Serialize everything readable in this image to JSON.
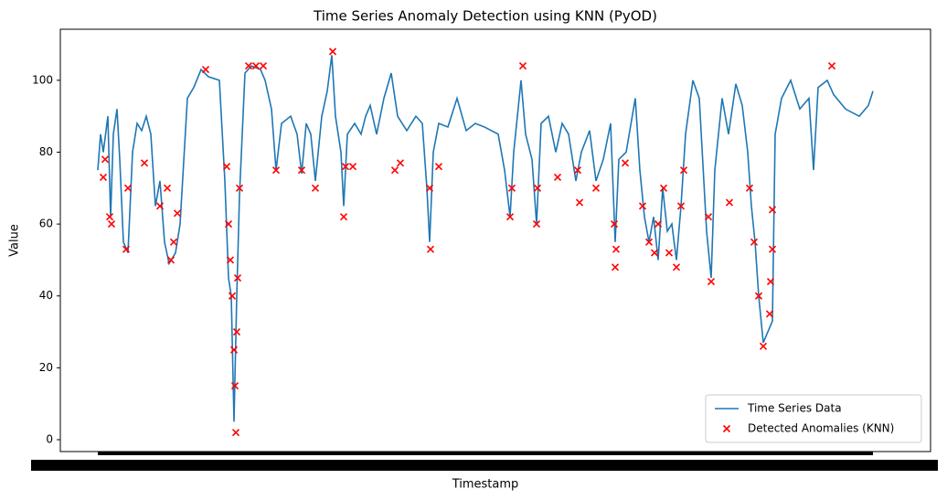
{
  "chart_data": {
    "type": "line",
    "title": "Time Series Anomaly Detection using KNN (PyOD)",
    "x_label": "Timestamp",
    "y_label": "Value",
    "xlim": [
      -41,
      911
    ],
    "ylim": [
      -3.3,
      114.2
    ],
    "yticks": [
      0,
      20,
      40,
      60,
      80,
      100
    ],
    "legend": "lower right",
    "series": [
      {
        "name": "Time Series Data",
        "color": "#1f77b4",
        "type": "line",
        "x": [
          0,
          3,
          6,
          11,
          14,
          17,
          21,
          24,
          28,
          33,
          38,
          43,
          48,
          53,
          58,
          63,
          68,
          73,
          78,
          85,
          90,
          98,
          105,
          113,
          121,
          133,
          139,
          143,
          146,
          149,
          152,
          155,
          161,
          168,
          178,
          183,
          190,
          195,
          201,
          211,
          218,
          223,
          228,
          233,
          238,
          245,
          251,
          256,
          260,
          266,
          269,
          273,
          281,
          288,
          293,
          298,
          305,
          313,
          321,
          328,
          338,
          348,
          355,
          360,
          363,
          367,
          373,
          383,
          393,
          403,
          413,
          423,
          438,
          445,
          451,
          455,
          463,
          468,
          475,
          480,
          485,
          493,
          501,
          508,
          515,
          523,
          529,
          538,
          545,
          553,
          561,
          566,
          570,
          578,
          588,
          593,
          598,
          603,
          608,
          613,
          618,
          623,
          628,
          633,
          638,
          643,
          651,
          658,
          666,
          671,
          675,
          683,
          690,
          698,
          705,
          711,
          715,
          719,
          723,
          728,
          733,
          738,
          741,
          748,
          758,
          768,
          778,
          783,
          788,
          798,
          805,
          818,
          833,
          843,
          848
        ],
        "values": [
          75,
          85,
          80,
          90,
          62,
          85,
          92,
          78,
          55,
          52,
          80,
          88,
          86,
          90,
          85,
          65,
          72,
          55,
          49,
          52,
          60,
          95,
          98,
          103,
          101,
          100,
          72,
          45,
          40,
          5,
          40,
          68,
          102,
          104,
          103,
          100,
          92,
          75,
          88,
          90,
          85,
          74,
          88,
          85,
          72,
          90,
          97,
          107,
          90,
          80,
          65,
          85,
          88,
          85,
          90,
          93,
          85,
          95,
          102,
          90,
          86,
          90,
          88,
          70,
          55,
          80,
          88,
          87,
          95,
          86,
          88,
          87,
          85,
          75,
          62,
          80,
          100,
          85,
          78,
          60,
          88,
          90,
          80,
          88,
          85,
          72,
          80,
          86,
          72,
          78,
          88,
          55,
          78,
          80,
          95,
          75,
          62,
          55,
          62,
          50,
          70,
          58,
          60,
          50,
          65,
          85,
          100,
          95,
          58,
          45,
          75,
          95,
          85,
          99,
          93,
          80,
          65,
          55,
          40,
          27,
          30,
          33,
          85,
          95,
          100,
          92,
          95,
          75,
          98,
          100,
          96,
          92,
          90,
          93,
          97
        ]
      },
      {
        "name": "Detected Anomalies (KNN)",
        "color": "#ff0000",
        "type": "scatter",
        "x": [
          6,
          8,
          13,
          15,
          31,
          33,
          51,
          68,
          76,
          80,
          83,
          87,
          118,
          141,
          143,
          145,
          147,
          149,
          150,
          151,
          152,
          153,
          155,
          165,
          173,
          181,
          195,
          223,
          238,
          257,
          269,
          271,
          279,
          325,
          331,
          363,
          364,
          373,
          451,
          453,
          465,
          480,
          481,
          503,
          525,
          527,
          545,
          565,
          566,
          567,
          577,
          596,
          603,
          609,
          613,
          619,
          625,
          633,
          638,
          641,
          668,
          671,
          691,
          713,
          718,
          723,
          728,
          735,
          738,
          738,
          736,
          803
        ],
        "values": [
          73,
          78,
          62,
          60,
          53,
          70,
          77,
          65,
          70,
          50,
          55,
          63,
          103,
          76,
          60,
          50,
          40,
          25,
          15,
          2,
          30,
          45,
          70,
          104,
          104,
          104,
          75,
          75,
          70,
          108,
          62,
          76,
          76,
          75,
          77,
          70,
          53,
          76,
          62,
          70,
          104,
          60,
          70,
          73,
          75,
          66,
          70,
          60,
          48,
          53,
          77,
          65,
          55,
          52,
          60,
          70,
          52,
          48,
          65,
          75,
          62,
          44,
          66,
          70,
          55,
          40,
          26,
          35,
          64,
          53,
          44,
          104
        ]
      }
    ]
  }
}
